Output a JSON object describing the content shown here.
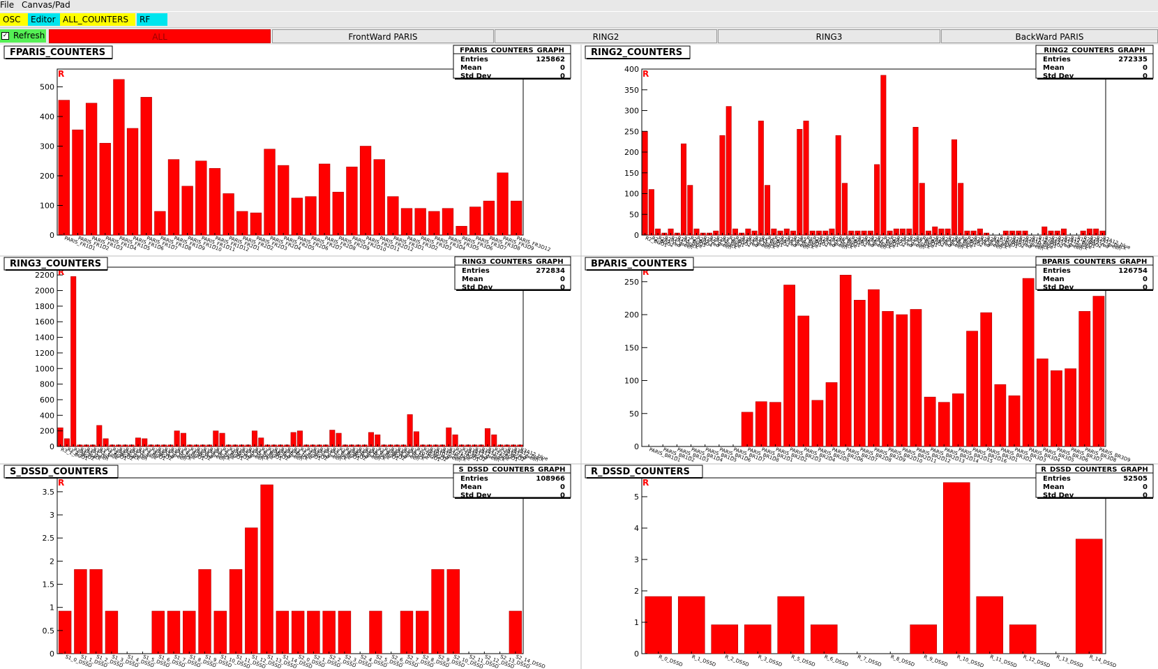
{
  "menu": [
    "File",
    "Canvas/Pad"
  ],
  "tabs": [
    {
      "label": "OSC",
      "color": "#ffff00"
    },
    {
      "label": "Editor",
      "color": "#00e5ee"
    },
    {
      "label": "ALL_COUNTERS",
      "color": "#ffff00"
    },
    {
      "label": "RF",
      "color": "#00e5ee"
    }
  ],
  "refresh": {
    "label": "Refresh",
    "checked": true
  },
  "subtabs": [
    {
      "label": "ALL",
      "active": true
    },
    {
      "label": "FrontWard PARIS",
      "active": false
    },
    {
      "label": "RING2",
      "active": false
    },
    {
      "label": "RING3",
      "active": false
    },
    {
      "label": "BackWard PARIS",
      "active": false
    }
  ],
  "stats_labels": {
    "entries": "Entries",
    "mean": "Mean",
    "std": "Std Dev"
  },
  "panels": [
    {
      "title": "FPARIS_COUNTERS",
      "stats": {
        "title": "FPARIS_COUNTERS_GRAPH",
        "entries": "125862",
        "mean": "0",
        "std": "0"
      },
      "marker": "R",
      "chart_data": {
        "type": "bar",
        "ylim": [
          0,
          560
        ],
        "yticks": [
          0,
          100,
          200,
          300,
          400,
          500
        ],
        "ytick_labels": [
          "0",
          "100",
          "200",
          "300",
          "400",
          "500"
        ],
        "values": [
          455,
          355,
          445,
          310,
          525,
          360,
          465,
          80,
          255,
          165,
          250,
          225,
          140,
          80,
          75,
          290,
          235,
          125,
          130,
          240,
          145,
          230,
          300,
          255,
          130,
          90,
          90,
          80,
          90,
          30,
          95,
          115,
          210,
          115
        ],
        "labels": [
          "PARIS_FR1D1",
          "PARIS_FR1D2",
          "PARIS_FR1D3",
          "PARIS_FR1D4",
          "PARIS_FR1D5",
          "PARIS_FR1D6",
          "PARIS_FR1D7",
          "PARIS_FR1D8",
          "PARIS_FR1D9",
          "PARIS_FR1D10",
          "PARIS_FR1D11",
          "PARIS_FR1D12",
          "PARIS_FR2D1",
          "PARIS_FR2D2",
          "PARIS_FR2D3",
          "PARIS_FR2D4",
          "PARIS_FR2D5",
          "PARIS_FR2D6",
          "PARIS_FR2D7",
          "PARIS_FR2D8",
          "PARIS_FR2D9",
          "PARIS_FR2D10",
          "PARIS_FR2D11",
          "PARIS_FR2D12",
          "PARIS_FR3D1",
          "PARIS_FR3D2",
          "PARIS_FR3D3",
          "PARIS_FR3D4",
          "PARIS_FR3D5",
          "PARIS_FR3D6",
          "PARIS_FR3D7",
          "PARIS_FR3D8",
          "PARIS_FR3D9",
          "PARIS_FR3D12"
        ]
      }
    },
    {
      "title": "RING2_COUNTERS",
      "stats": {
        "title": "RING2_COUNTERS_GRAPH",
        "entries": "272335",
        "mean": "0",
        "std": "0"
      },
      "marker": "R",
      "chart_data": {
        "type": "bar",
        "ylim": [
          0,
          400
        ],
        "yticks": [
          0,
          50,
          100,
          150,
          200,
          250,
          300,
          350,
          400
        ],
        "ytick_labels": [
          "0",
          "50",
          "100",
          "150",
          "200",
          "250",
          "300",
          "350",
          "400"
        ],
        "values": [
          250,
          110,
          15,
          5,
          15,
          5,
          220,
          120,
          15,
          5,
          5,
          10,
          240,
          310,
          15,
          5,
          15,
          10,
          275,
          120,
          15,
          10,
          15,
          10,
          255,
          275,
          10,
          10,
          10,
          15,
          240,
          125,
          10,
          10,
          10,
          10,
          170,
          385,
          10,
          15,
          15,
          15,
          260,
          125,
          10,
          20,
          15,
          15,
          230,
          125,
          10,
          10,
          15,
          5,
          0,
          0,
          10,
          10,
          10,
          10,
          0,
          0,
          20,
          10,
          10,
          15,
          0,
          0,
          10,
          15,
          15,
          10
        ],
        "labels": [
          "R2_BGO1",
          "R2_BGO2",
          "R2A1_red",
          "R2A1_green",
          "R2A1_black",
          "R2A1_blue",
          "R2_BGO3",
          "R2_BGO4",
          "R2A2_red",
          "R2A2_green",
          "R2A2_black",
          "R2A2_blue",
          "R3_BGO1",
          "R3_BGO2",
          "R3A3_red",
          "R3A3_green",
          "R3A3_black",
          "R3A3_blue",
          "R4_BGO1",
          "R4_BGO2",
          "R2A4_red",
          "R2A4_green",
          "R2A4_black",
          "R2A4_blue",
          "R5_BGO1",
          "R5_BGO2",
          "R2A5_red",
          "R2A5_green",
          "R2A5_black",
          "R2A5_blue",
          "R6_BGO1",
          "R6_BGO2",
          "R2A6_red",
          "R2A6_green",
          "R2A6_black",
          "R2A6_blue",
          "R7_BGO1",
          "R7_BGO2",
          "R2A7_red",
          "R2A7_green",
          "R2A7_black",
          "R2A7_blue",
          "R8_BGO1",
          "R8_BGO2",
          "R2A8_red",
          "R2A8_green",
          "R2A8_black",
          "R2A8_blue",
          "R9_BGO1",
          "R9_BGO2",
          "R2A9_red",
          "R2A9_green",
          "R2A9_black",
          "R2A9_blue",
          "R10_BGO1",
          "R10_BGO2",
          "R2A10_red",
          "R2A10_green",
          "R2A10_black",
          "R2A10_blue",
          "R11_BGO1",
          "R11_BGO2",
          "R2A11_red",
          "R2A11_green",
          "R2A11_black",
          "R2A11_blue",
          "R12_BGO1",
          "R12_BGO2",
          "R2A12_red",
          "R2A12_green",
          "R2A12_black",
          "R2A12_blue"
        ]
      }
    },
    {
      "title": "RING3_COUNTERS",
      "stats": {
        "title": "RING3_COUNTERS_GRAPH",
        "entries": "272834",
        "mean": "0",
        "std": "0"
      },
      "marker": "R",
      "chart_data": {
        "type": "bar",
        "ylim": [
          0,
          2300
        ],
        "yticks": [
          0,
          200,
          400,
          600,
          800,
          1000,
          1200,
          1400,
          1600,
          1800,
          2000,
          2200
        ],
        "ytick_labels": [
          "0",
          "200",
          "400",
          "600",
          "800",
          "1000",
          "1200",
          "1400",
          "1600",
          "1800",
          "2000",
          "2200"
        ],
        "values": [
          240,
          100,
          2180,
          20,
          20,
          20,
          270,
          100,
          20,
          20,
          20,
          20,
          110,
          100,
          20,
          20,
          20,
          20,
          200,
          170,
          20,
          20,
          20,
          20,
          200,
          170,
          20,
          20,
          20,
          20,
          200,
          110,
          20,
          20,
          20,
          20,
          180,
          200,
          20,
          20,
          20,
          20,
          210,
          170,
          20,
          20,
          20,
          20,
          180,
          150,
          20,
          20,
          20,
          20,
          410,
          190,
          20,
          20,
          20,
          20,
          240,
          150,
          20,
          20,
          20,
          20,
          230,
          150,
          20,
          20,
          20,
          20
        ],
        "labels": [
          "R3_1_BGO1",
          "R3_1_BGO2",
          "R3A1_black",
          "R3A1_green",
          "R3A1_red",
          "R3A1_blue",
          "R3_2_BGO1",
          "R3_2_BGO2",
          "R3A2_black",
          "R3A2_green",
          "R3A2_red",
          "R3A2_blue",
          "R3_3_BGO1",
          "R3_3_BGO2",
          "R3A3_red",
          "R3A3_green",
          "R3A3_black",
          "R3A3_blue",
          "R3_4_BGO1",
          "R3_4_BGO2",
          "R3A4_red",
          "R3A4_green",
          "R3A4_black",
          "R3A4_blue",
          "R3_5_BGO1",
          "R3_5_BGO2",
          "R3A5_red",
          "R3A5_green",
          "R3A5_black",
          "R3A5_blue",
          "R3_6_BGO1",
          "R3_6_BGO2",
          "R3A6_red",
          "R3A6_green",
          "R3A6_black",
          "R3A6_blue",
          "R3_7_BGO1",
          "R3_7_BGO2",
          "R3A7_red",
          "R3A7_green",
          "R3A7_black",
          "R3A7_blue",
          "R3_8_BGO1",
          "R3_8_BGO2",
          "R3A8_red",
          "R3A8_green",
          "R3A8_black",
          "R3A8_blue",
          "R3_9_BGO1",
          "R3_9_BGO2",
          "R3A9_red",
          "R3A9_green",
          "R3A9_black",
          "R3A9_blue",
          "R3_10_BGO1",
          "R3_10_BGO2",
          "R3A10_red",
          "R3A10_green",
          "R3A10_black",
          "R3A10_blue",
          "R3_11_BGO1",
          "R3_11_BGO2",
          "R3A11_red",
          "R3A11_green",
          "R3A11_black",
          "R3A11_blue",
          "R3_12_BGO1",
          "R3_12_BGO2",
          "R3A12_red",
          "R3A12_green",
          "R3A12_black",
          "R3A12_blue"
        ]
      }
    },
    {
      "title": "BPARIS_COUNTERS",
      "stats": {
        "title": "BPARIS_COUNTERS_GRAPH",
        "entries": "126754",
        "mean": "0",
        "std": "0"
      },
      "marker": "R",
      "chart_data": {
        "type": "bar",
        "ylim": [
          0,
          272
        ],
        "yticks": [
          0,
          50,
          100,
          150,
          200,
          250
        ],
        "ytick_labels": [
          "0",
          "50",
          "100",
          "150",
          "200",
          "250"
        ],
        "values": [
          0,
          0,
          0,
          0,
          0,
          0,
          0,
          52,
          68,
          67,
          245,
          198,
          70,
          97,
          260,
          222,
          238,
          205,
          200,
          208,
          75,
          67,
          80,
          175,
          203,
          94,
          77,
          255,
          133,
          115,
          118,
          205,
          228
        ],
        "labels": [
          "PARIS_BR1D1",
          "PARIS_BR1D2",
          "PARIS_BR1D3",
          "PARIS_BR1D4",
          "PARIS_BR1D5",
          "PARIS_BR1D6",
          "PARIS_BR1D7",
          "PARIS_BR1D8",
          "PARIS_BR2D1",
          "PARIS_BR2D2",
          "PARIS_BR2D3",
          "PARIS_BR2D4",
          "PARIS_BR2D5",
          "PARIS_BR2D6",
          "PARIS_BR2D7",
          "PARIS_BR2D8",
          "PARIS_BR2D9",
          "PARIS_BR2D10",
          "PARIS_BR2D11",
          "PARIS_BR2D12",
          "PARIS_BR2D13",
          "PARIS_BR2D14",
          "PARIS_BR2D15",
          "PARIS_BR2D16",
          "PARIS_BR3D1",
          "PARIS_BR3D2",
          "PARIS_BR3D3",
          "PARIS_BR3D4",
          "PARIS_BR3D5",
          "PARIS_BR3D6",
          "PARIS_BR3D7",
          "PARIS_BR3D8",
          "PARIS_BR3D9"
        ]
      }
    },
    {
      "title": "S_DSSD_COUNTERS",
      "stats": {
        "title": "S_DSSD_COUNTERS_GRAPH",
        "entries": "108966",
        "mean": "0",
        "std": "0"
      },
      "marker": "R",
      "chart_data": {
        "type": "bar",
        "ylim": [
          0,
          3.8
        ],
        "yticks": [
          0,
          0.5,
          1,
          1.5,
          2,
          2.5,
          3,
          3.5
        ],
        "ytick_labels": [
          "0",
          "0.5",
          "1",
          "1.5",
          "2",
          "2.5",
          "3",
          "3.5"
        ],
        "values": [
          0.92,
          1.82,
          1.82,
          0.92,
          0,
          0,
          0.92,
          0.92,
          0.92,
          1.82,
          0.92,
          1.82,
          2.72,
          3.65,
          0.92,
          0.92,
          0.92,
          0.92,
          0.92,
          0,
          0.92,
          0,
          0.92,
          0.92,
          1.82,
          1.82,
          0,
          0,
          0,
          0.92
        ],
        "labels": [
          "S1_0_DSSD",
          "S1_1_DSSD",
          "S1_2_DSSD",
          "S1_3_DSSD",
          "S1_4_DSSD",
          "S1_5_DSSD",
          "S1_6_DSSD",
          "S1_7_DSSD",
          "S1_8_DSSD",
          "S1_9_DSSD",
          "S1_10_DSSD",
          "S1_11_DSSD",
          "S1_12_DSSD",
          "S1_13_DSSD",
          "S1_14_DSSD",
          "S2_0_DSSD",
          "S2_1_DSSD",
          "S2_2_DSSD",
          "S2_3_DSSD",
          "S2_4_DSSD",
          "S2_5_DSSD",
          "S2_6_DSSD",
          "S2_7_DSSD",
          "S2_8_DSSD",
          "S2_9_DSSD",
          "S2_10_DSSD",
          "S2_11_DSSD",
          "S2_12_DSSD",
          "S2_13_DSSD",
          "S2_14_DSSD"
        ]
      }
    },
    {
      "title": "R_DSSD_COUNTERS",
      "stats": {
        "title": "R_DSSD_COUNTERS_GRAPH",
        "entries": "52505",
        "mean": "0",
        "std": "0"
      },
      "marker": "R",
      "chart_data": {
        "type": "bar",
        "ylim": [
          0,
          5.6
        ],
        "yticks": [
          0,
          1,
          2,
          3,
          4,
          5
        ],
        "ytick_labels": [
          "0",
          "1",
          "2",
          "3",
          "4",
          "5"
        ],
        "values": [
          1.82,
          1.82,
          0.92,
          0.92,
          1.82,
          0.92,
          0,
          0,
          0.92,
          5.45,
          1.82,
          0.92,
          0,
          3.65
        ],
        "labels": [
          "R_0_DSSD",
          "R_1_DSSD",
          "R_2_DSSD",
          "R_3_DSSD",
          "R_5_DSSD",
          "R_6_DSSD",
          "R_7_DSSD",
          "R_8_DSSD",
          "R_9_DSSD",
          "R_10_DSSD",
          "R_11_DSSD",
          "R_12_DSSD",
          "R_13_DSSD",
          "R_14_DSSD"
        ]
      }
    }
  ]
}
